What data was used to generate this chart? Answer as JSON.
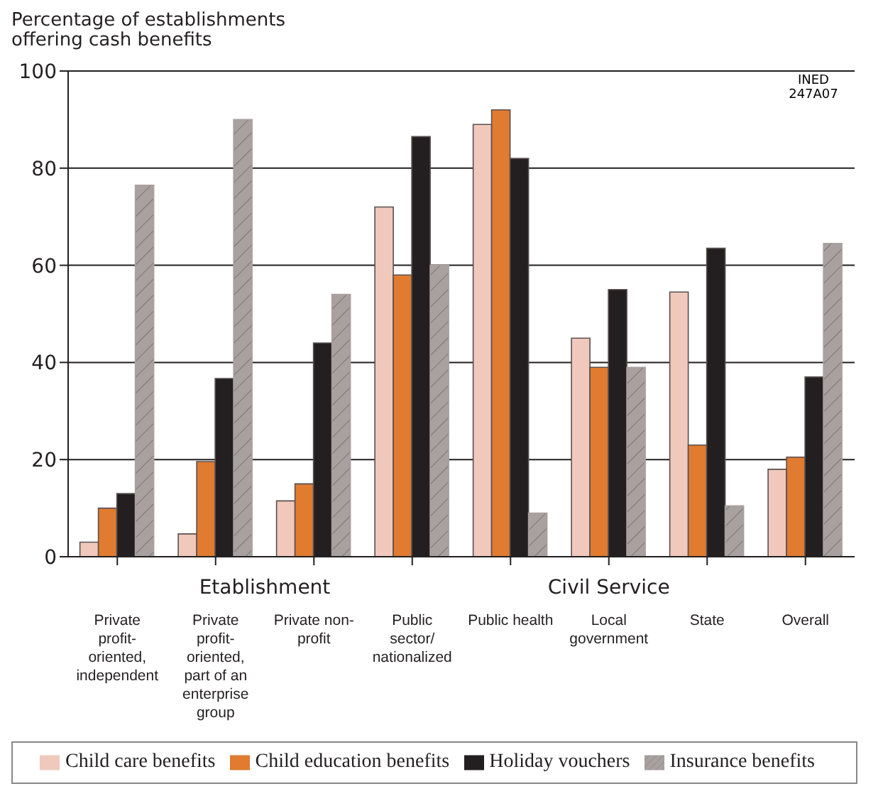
{
  "chart_data": {
    "type": "bar",
    "ylabel": "Percentage of establishments offering cash benefits",
    "categories": [
      "Private profit-oriented, independent",
      "Private profit-oriented, part of an enterprise group",
      "Private non-profit",
      "Public sector/ nationalized",
      "Public health",
      "Local government",
      "State",
      "Overall"
    ],
    "series": [
      {
        "name": "Child care benefits",
        "color": "#f0c8bc",
        "values": [
          3,
          4.7,
          11.5,
          72,
          89,
          45,
          54.5,
          18
        ]
      },
      {
        "name": "Child education benefits",
        "color": "#e07b30",
        "values": [
          10,
          19.6,
          15,
          58,
          92,
          39,
          23,
          20.5
        ]
      },
      {
        "name": "Holiday vouchers",
        "color": "#231f20",
        "values": [
          13,
          36.7,
          44,
          86.5,
          82,
          55,
          63.5,
          37
        ]
      },
      {
        "name": "Insurance benefits",
        "color": "#a9a0a0",
        "values": [
          76.5,
          90,
          54,
          60,
          9,
          39,
          10.5,
          64.5
        ]
      }
    ],
    "annotations": [
      "Etablishment",
      "Civil Service",
      "INED 247A07"
    ],
    "ylim": [
      0,
      100
    ],
    "yticks": [
      0,
      20,
      40,
      60,
      80,
      100
    ],
    "grid": "y",
    "legend": "bottom"
  }
}
